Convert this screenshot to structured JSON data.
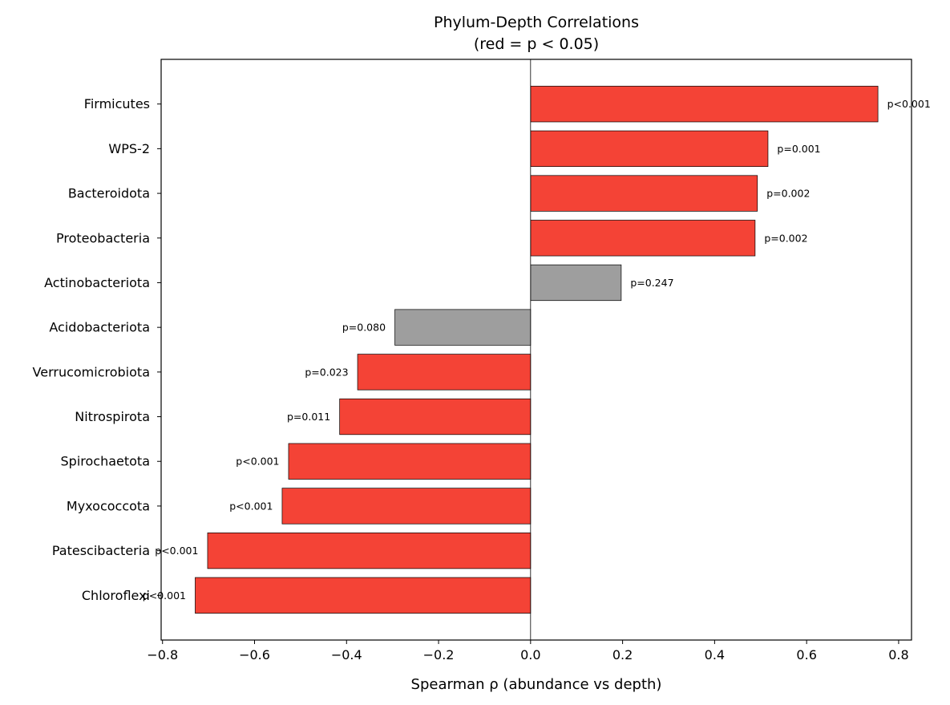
{
  "chart_data": {
    "type": "bar",
    "orientation": "horizontal",
    "title": "Phylum-Depth Correlations",
    "subtitle": "(red = p < 0.05)",
    "xlabel": "Spearman ρ (abundance vs depth)",
    "ylabel": "",
    "xlim": [
      -0.803,
      0.828
    ],
    "xticks": [
      "−0.8",
      "−0.6",
      "−0.4",
      "−0.2",
      "0.0",
      "0.2",
      "0.4",
      "0.6",
      "0.8"
    ],
    "xtick_values": [
      -0.8,
      -0.6,
      -0.4,
      -0.2,
      0.0,
      0.2,
      0.4,
      0.6,
      0.8
    ],
    "grid": false,
    "colors": {
      "significant": "#f44336",
      "not_significant": "#9e9e9e"
    },
    "categories": [
      "Firmicutes",
      "WPS-2",
      "Bacteroidota",
      "Proteobacteria",
      "Actinobacteriota",
      "Acidobacteriota",
      "Verrucomicrobiota",
      "Nitrospirota",
      "Spirochaetota",
      "Myxococcota",
      "Patescibacteria",
      "Chloroflexi"
    ],
    "values": [
      0.755,
      0.516,
      0.493,
      0.488,
      0.197,
      -0.295,
      -0.376,
      -0.415,
      -0.526,
      -0.54,
      -0.702,
      -0.729
    ],
    "p_labels": [
      "p<0.001",
      "p=0.001",
      "p=0.002",
      "p=0.002",
      "p=0.247",
      "p=0.080",
      "p=0.023",
      "p=0.011",
      "p<0.001",
      "p<0.001",
      "p<0.001",
      "p<0.001"
    ],
    "significant": [
      true,
      true,
      true,
      true,
      false,
      false,
      true,
      true,
      true,
      true,
      true,
      true
    ]
  }
}
